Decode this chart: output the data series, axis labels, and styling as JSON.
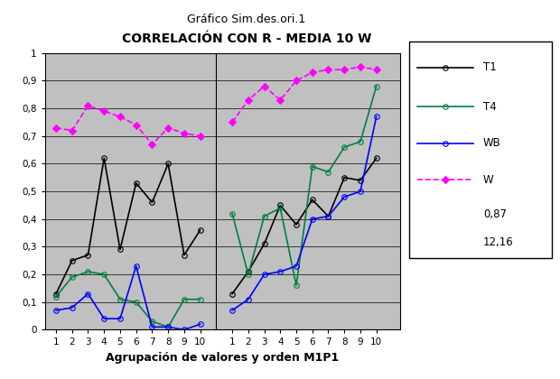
{
  "title_top": "Gráfico Sim.des.ori.1",
  "title_main": "CORRELACIÓN CON R - MEDIA 10 W",
  "xlabel": "Agrupación de valores y orden M1P1",
  "background_color": "#c0c0c0",
  "series": {
    "T1": {
      "color": "#000000",
      "marker": "o",
      "linestyle": "-",
      "linewidth": 1.2,
      "markersize": 4,
      "fillstyle": "none",
      "data_group1": [
        0.13,
        0.25,
        0.27,
        0.62,
        0.29,
        0.53,
        0.46,
        0.6,
        0.27,
        0.36
      ],
      "data_group2": [
        0.13,
        0.21,
        0.31,
        0.45,
        0.38,
        0.47,
        0.41,
        0.55,
        0.54,
        0.62
      ]
    },
    "T4": {
      "color": "#008040",
      "marker": "o",
      "linestyle": "-",
      "linewidth": 1.2,
      "markersize": 4,
      "fillstyle": "none",
      "data_group1": [
        0.12,
        0.19,
        0.21,
        0.2,
        0.11,
        0.1,
        0.03,
        0.01,
        0.11,
        0.11
      ],
      "data_group2": [
        0.42,
        0.2,
        0.41,
        0.44,
        0.16,
        0.59,
        0.57,
        0.66,
        0.68,
        0.88
      ]
    },
    "WB": {
      "color": "#0000ff",
      "marker": "o",
      "linestyle": "-",
      "linewidth": 1.2,
      "markersize": 4,
      "fillstyle": "none",
      "data_group1": [
        0.07,
        0.08,
        0.13,
        0.04,
        0.04,
        0.23,
        0.01,
        0.01,
        0.0,
        0.02
      ],
      "data_group2": [
        0.07,
        0.11,
        0.2,
        0.21,
        0.23,
        0.4,
        0.41,
        0.48,
        0.5,
        0.77
      ]
    },
    "W": {
      "color": "#ff00ff",
      "marker": "D",
      "linestyle": "--",
      "linewidth": 1.2,
      "markersize": 4,
      "fillstyle": "full",
      "data_group1": [
        0.73,
        0.72,
        0.81,
        0.79,
        0.77,
        0.74,
        0.67,
        0.73,
        0.71,
        0.7
      ],
      "data_group2": [
        0.75,
        0.83,
        0.88,
        0.83,
        0.9,
        0.93,
        0.94,
        0.94,
        0.95,
        0.94
      ]
    }
  },
  "ylim": [
    0,
    1
  ],
  "yticks": [
    0,
    0.1,
    0.2,
    0.3,
    0.4,
    0.5,
    0.6,
    0.7,
    0.8,
    0.9,
    1
  ],
  "legend_items": [
    {
      "label": "T1",
      "color": "#000000",
      "linestyle": "-",
      "marker": "o",
      "fillstyle": "none"
    },
    {
      "label": "T4",
      "color": "#008040",
      "linestyle": "-",
      "marker": "o",
      "fillstyle": "none"
    },
    {
      "label": "WB",
      "color": "#0000ff",
      "linestyle": "-",
      "marker": "o",
      "fillstyle": "none"
    },
    {
      "label": "W",
      "color": "#ff00ff",
      "linestyle": "--",
      "marker": "D",
      "fillstyle": "full"
    }
  ],
  "extra_text": [
    "0,87",
    "12,16"
  ]
}
